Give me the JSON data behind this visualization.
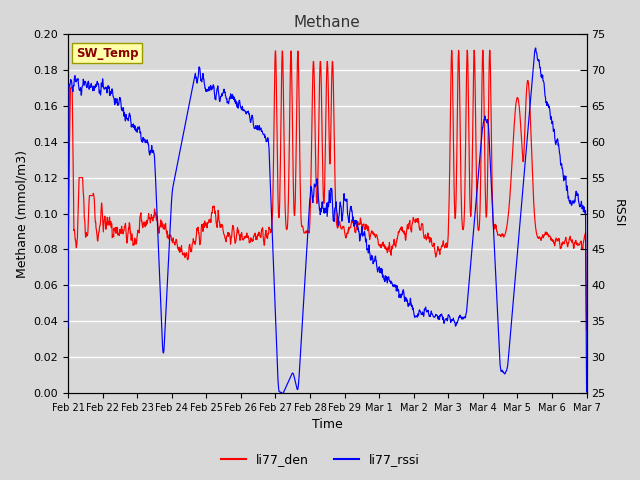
{
  "title": "Methane",
  "ylabel_left": "Methane (mmol/m3)",
  "ylabel_right": "RSSI",
  "xlabel": "Time",
  "ylim_left": [
    0.0,
    0.2
  ],
  "ylim_right": [
    25,
    75
  ],
  "yticks_left": [
    0.0,
    0.02,
    0.04,
    0.06,
    0.08,
    0.1,
    0.12,
    0.14,
    0.16,
    0.18,
    0.2
  ],
  "yticks_right": [
    25,
    30,
    35,
    40,
    45,
    50,
    55,
    60,
    65,
    70,
    75
  ],
  "xtick_labels": [
    "Feb 21",
    "Feb 22",
    "Feb 23",
    "Feb 24",
    "Feb 25",
    "Feb 26",
    "Feb 27",
    "Feb 28",
    "Feb 29",
    "Mar 1",
    "Mar 2",
    "Mar 3",
    "Mar 4",
    "Mar 5",
    "Mar 6",
    "Mar 7"
  ],
  "sw_temp_label": "SW_Temp",
  "legend_labels": [
    "li77_den",
    "li77_rssi"
  ],
  "line_colors": [
    "red",
    "blue"
  ],
  "fig_bg_color": "#d8d8d8",
  "plot_bg_color": "#d8d8d8",
  "grid_color": "#ffffff",
  "sw_temp_bg": "#ffffaa",
  "sw_temp_fg": "#8b0000",
  "sw_temp_edge": "#999900",
  "title_color": "#333333",
  "title_fontsize": 11,
  "axis_label_fontsize": 9,
  "tick_fontsize": 8,
  "legend_fontsize": 9
}
